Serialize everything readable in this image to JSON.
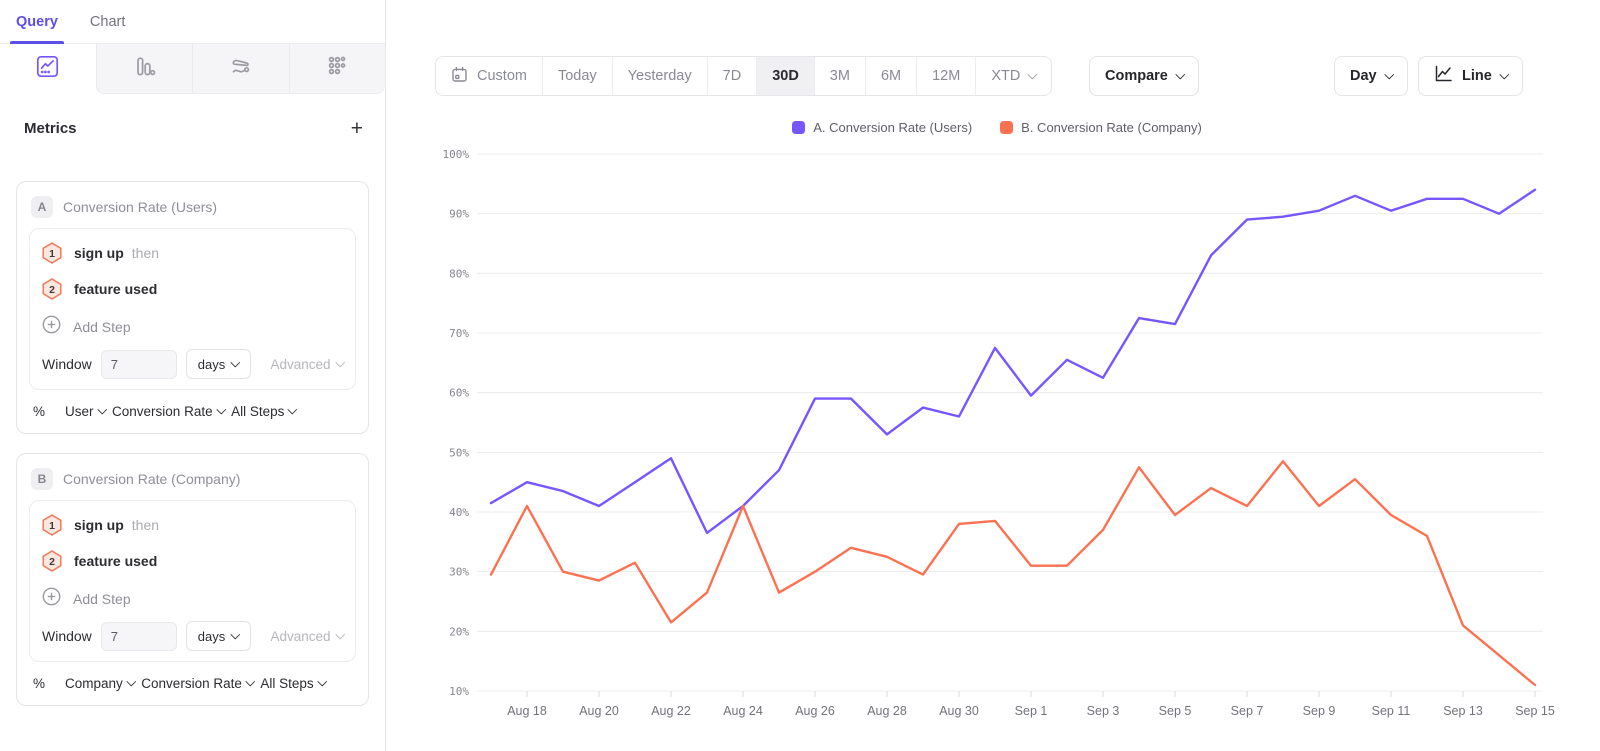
{
  "sidebar": {
    "tabs": [
      {
        "label": "Query",
        "active": true
      },
      {
        "label": "Chart",
        "active": false
      }
    ],
    "viz_tabs": [
      {
        "icon": "line-chart-icon",
        "active": true
      },
      {
        "icon": "bar-chart-icon",
        "active": false
      },
      {
        "icon": "flow-chart-icon",
        "active": false
      },
      {
        "icon": "dots-grid-icon",
        "active": false
      }
    ],
    "metrics": {
      "title": "Metrics",
      "add_label": "+",
      "cards": [
        {
          "badge": "A",
          "title": "Conversion Rate (Users)",
          "steps": [
            {
              "num": "1",
              "label": "sign up",
              "suffix": "then"
            },
            {
              "num": "2",
              "label": "feature used",
              "suffix": ""
            }
          ],
          "add_step_label": "Add Step",
          "window_label": "Window",
          "window_value": "7",
          "window_unit": "days",
          "advanced_label": "Advanced",
          "measure": {
            "prefix": "%",
            "entity": "User",
            "metric": "Conversion Rate",
            "steps": "All Steps"
          }
        },
        {
          "badge": "B",
          "title": "Conversion Rate (Company)",
          "steps": [
            {
              "num": "1",
              "label": "sign up",
              "suffix": "then"
            },
            {
              "num": "2",
              "label": "feature used",
              "suffix": ""
            }
          ],
          "add_step_label": "Add Step",
          "window_label": "Window",
          "window_value": "7",
          "window_unit": "days",
          "advanced_label": "Advanced",
          "measure": {
            "prefix": "%",
            "entity": "Company",
            "metric": "Conversion Rate",
            "steps": "All Steps"
          }
        }
      ]
    }
  },
  "toolbar": {
    "date_ranges": [
      {
        "label": "Custom"
      },
      {
        "label": "Today"
      },
      {
        "label": "Yesterday"
      },
      {
        "label": "7D"
      },
      {
        "label": "30D",
        "active": true
      },
      {
        "label": "3M"
      },
      {
        "label": "6M"
      },
      {
        "label": "12M"
      },
      {
        "label": "XTD"
      }
    ],
    "compare_label": "Compare",
    "granularity_label": "Day",
    "chart_type_label": "Line"
  },
  "legend": [
    {
      "label": "A. Conversion Rate (Users)",
      "color": "#7856FF"
    },
    {
      "label": "B. Conversion Rate (Company)",
      "color": "#FB7252"
    }
  ],
  "colors": {
    "accent_purple": "#5B4FE6",
    "series_purple": "#7856FF",
    "series_orange": "#FB7252",
    "step_badge_border": "#F2795B",
    "step_badge_fill": "#FCE7DF",
    "gridline": "#ECECEF"
  },
  "chart_data": {
    "type": "line",
    "title": "",
    "xlabel": "",
    "ylabel": "",
    "y_unit": "%",
    "ylim": [
      10,
      100
    ],
    "y_ticks": [
      10,
      20,
      30,
      40,
      50,
      60,
      70,
      80,
      90,
      100
    ],
    "grid": true,
    "legend_position": "top",
    "x_label_every": 2,
    "x_label_start_index": 1,
    "x": [
      "Aug 17",
      "Aug 18",
      "Aug 19",
      "Aug 20",
      "Aug 21",
      "Aug 22",
      "Aug 23",
      "Aug 24",
      "Aug 25",
      "Aug 26",
      "Aug 27",
      "Aug 28",
      "Aug 29",
      "Aug 30",
      "Aug 31",
      "Sep 1",
      "Sep 2",
      "Sep 3",
      "Sep 4",
      "Sep 5",
      "Sep 6",
      "Sep 7",
      "Sep 8",
      "Sep 9",
      "Sep 10",
      "Sep 11",
      "Sep 12",
      "Sep 13",
      "Sep 14",
      "Sep 15"
    ],
    "series": [
      {
        "name": "A. Conversion Rate (Users)",
        "color": "#7856FF",
        "values": [
          41.5,
          45,
          43.5,
          41,
          45,
          49,
          36.5,
          41,
          47,
          59,
          59,
          53,
          57.5,
          56,
          67.5,
          59.5,
          65.5,
          62.5,
          72.5,
          71.5,
          83,
          89,
          89.5,
          90.5,
          93,
          90.5,
          92.5,
          92.5,
          90,
          94
        ]
      },
      {
        "name": "B. Conversion Rate (Company)",
        "color": "#FB7252",
        "values": [
          29.5,
          41,
          30,
          28.5,
          31.5,
          21.5,
          26.5,
          41,
          26.5,
          30,
          34,
          32.5,
          29.5,
          38,
          38.5,
          31,
          31,
          37,
          47.5,
          39.5,
          44,
          41,
          48.5,
          41,
          45.5,
          39.5,
          36,
          21,
          16,
          11
        ]
      }
    ]
  }
}
